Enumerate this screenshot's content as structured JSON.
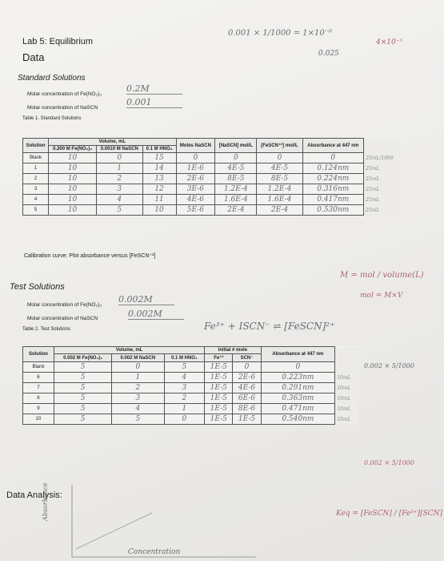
{
  "header": {
    "title": "Lab 5: Equilibrium",
    "subtitle": "Data"
  },
  "standard": {
    "heading": "Standard Solutions",
    "fe_label": "Molar concentration of Fe(NO₃)₃",
    "fe_value": "0.2M",
    "scn_label": "Molar concentration of NaSCN",
    "scn_value": "0.001",
    "caption": "Table 1. Standard Solutions"
  },
  "table1": {
    "group_header": "Volume, mL",
    "headers": [
      "Solution",
      "0.200 M Fe(NO₃)₃",
      "0.0010 M NaSCN",
      "0.1 M HNO₃",
      "Moles NaSCN",
      "[NaSCN] mol/L",
      "[FeSCN⁺²] mol/L",
      "Absorbance at 447 nm"
    ],
    "rows": [
      [
        "Blank",
        "10",
        "0",
        "15",
        "0",
        "0",
        "0",
        "0"
      ],
      [
        "1",
        "10",
        "1",
        "14",
        "1E-6",
        "4E-5",
        "4E-5",
        "0.124nm"
      ],
      [
        "2",
        "10",
        "2",
        "13",
        "2E-6",
        "8E-5",
        "8E-5",
        "0.224nm"
      ],
      [
        "3",
        "10",
        "3",
        "12",
        "3E-6",
        "1.2E-4",
        "1.2E-4",
        "0.316nm"
      ],
      [
        "4",
        "10",
        "4",
        "11",
        "4E-6",
        "1.6E-4",
        "1.6E-4",
        "0.417nm"
      ],
      [
        "5",
        "10",
        "5",
        "10",
        "5E-6",
        "2E-4",
        "2E-4",
        "0.530nm"
      ]
    ],
    "notes": [
      "25mL/1000",
      "25mL",
      "25mL",
      "25mL",
      "25mL",
      "25mL"
    ]
  },
  "calibration": "Calibration curve: Plot absorbance versus [FeSCN⁺²]",
  "test": {
    "heading": "Test Solutions",
    "fe_label": "Molar concentration of Fe(NO₃)₃",
    "fe_value": "0.002M",
    "scn_label": "Molar concentration of NaSCN",
    "scn_value": "0.002M",
    "caption": "Table 2. Test Solutions"
  },
  "table2": {
    "group_headers": [
      "Volume, mL",
      "Initial # mole"
    ],
    "headers": [
      "Solution",
      "0.002 M Fe(NO₃)₃",
      "0.002 M NaSCN",
      "0.1 M HNO₃",
      "Fe⁺³",
      "SCN⁻",
      "Absorbance at 447 nm"
    ],
    "rows": [
      [
        "Blank",
        "5",
        "0",
        "5",
        "1E-5",
        "0",
        "0"
      ],
      [
        "6",
        "5",
        "1",
        "4",
        "1E-5",
        "2E-6",
        "0.223nm"
      ],
      [
        "7",
        "5",
        "2",
        "3",
        "1E-5",
        "4E-6",
        "0.291nm"
      ],
      [
        "8",
        "5",
        "3",
        "2",
        "1E-5",
        "6E-6",
        "0.363nm"
      ],
      [
        "9",
        "5",
        "4",
        "1",
        "1E-5",
        "8E-6",
        "0.471nm"
      ],
      [
        "10",
        "5",
        "5",
        "0",
        "1E-5",
        "1E-5",
        "0.540nm"
      ]
    ],
    "notes": [
      "",
      "10mL",
      "10mL",
      "10mL",
      "10mL",
      "10mL"
    ]
  },
  "analysis": {
    "heading": "Data Analysis:",
    "y_axis": "Absorbance",
    "x_axis": "Concentration",
    "equation": "Keq = [FeSCN] / [Fe³⁺][SCN]"
  },
  "annotations": [
    "0.001 × 1/1000 = 1×10⁻⁶",
    "0.025",
    "4×10⁻⁵",
    "M = mol / volume(L)",
    "mol = M×V",
    "Fe³⁺ + ISCN⁻ ⇌ [FeSCN]²⁺",
    "0.002 × 5/1000",
    "0.002 × 5/1000"
  ]
}
